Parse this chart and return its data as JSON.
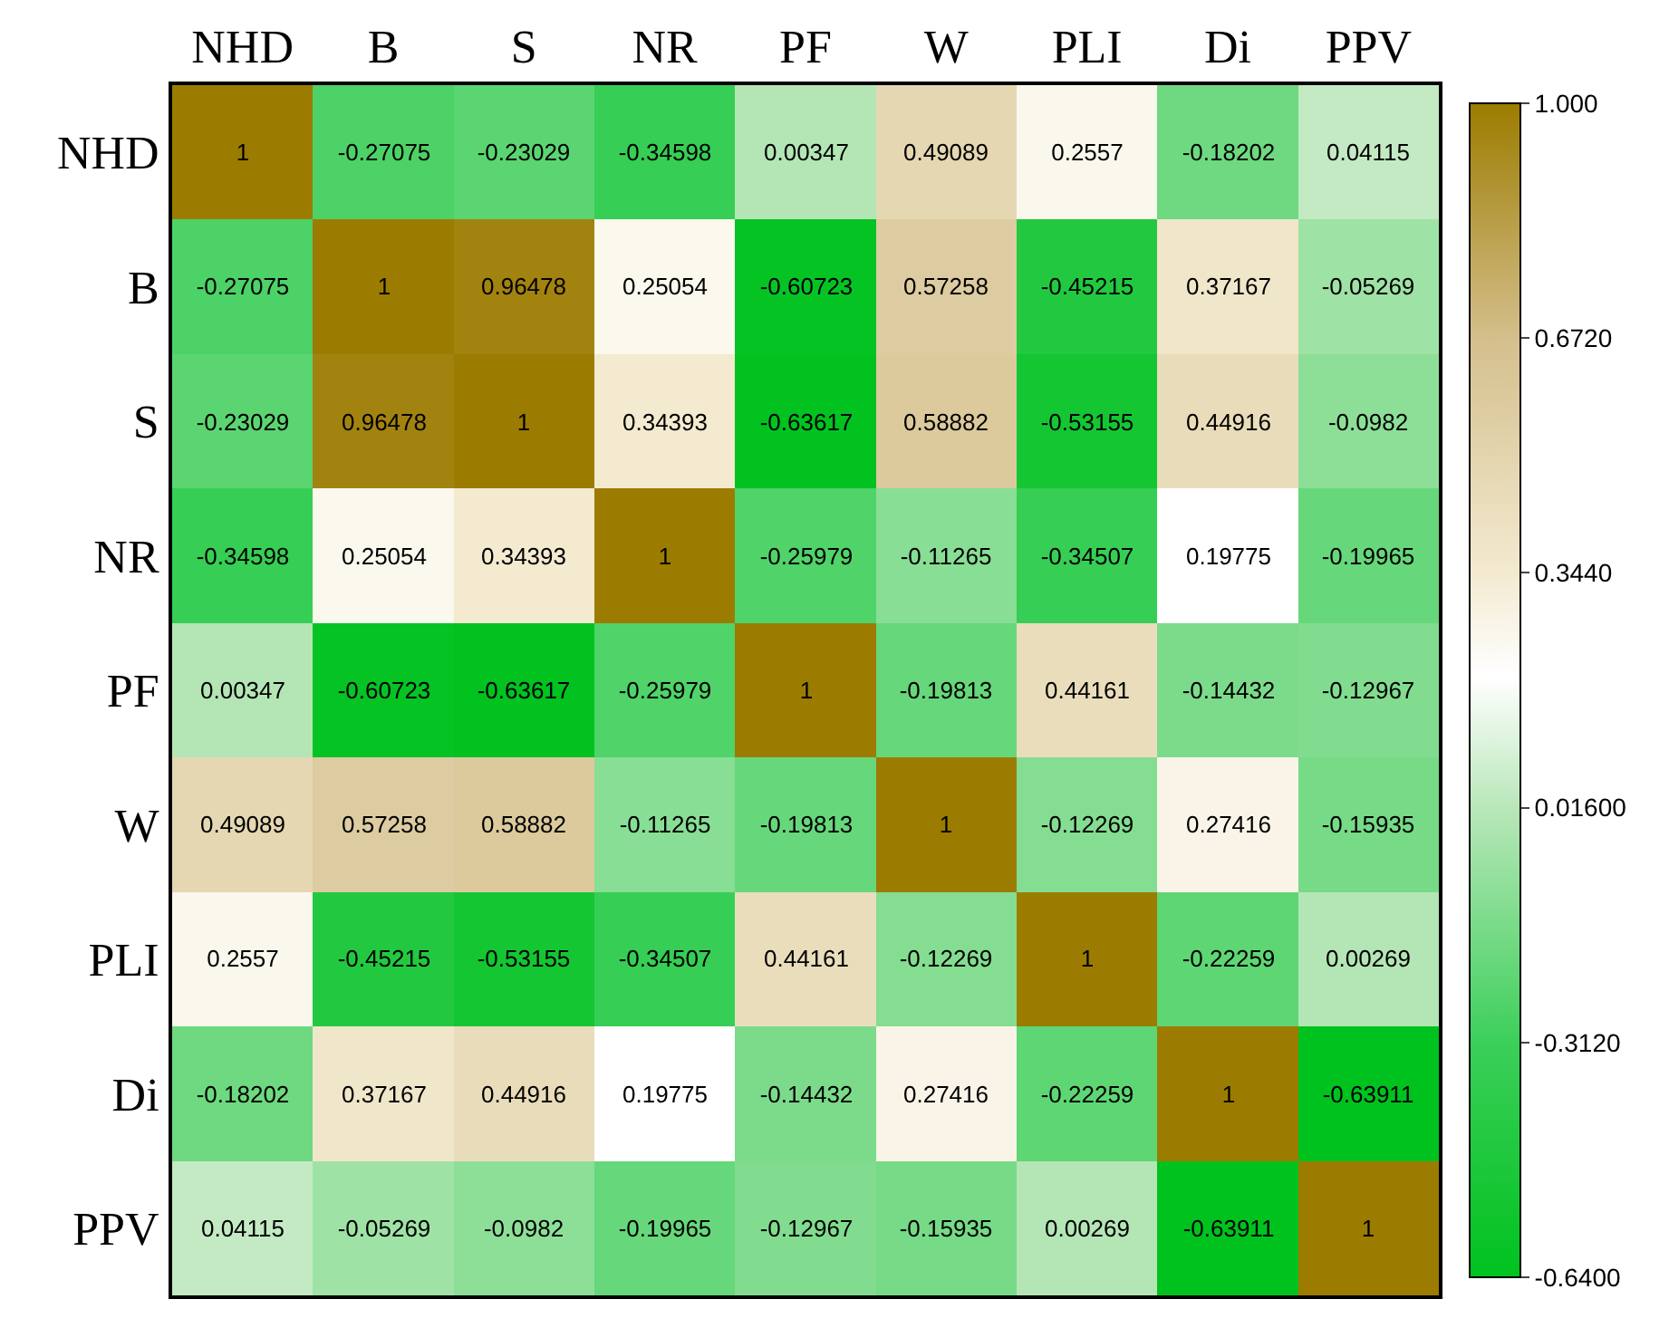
{
  "chart_data": {
    "type": "heatmap",
    "categories": [
      "NHD",
      "B",
      "S",
      "NR",
      "PF",
      "W",
      "PLI",
      "Di",
      "PPV"
    ],
    "y_categories": [
      "NHD",
      "B",
      "S",
      "NR",
      "PF",
      "W",
      "PLI",
      "Di",
      "PPV"
    ],
    "cells": [
      [
        1,
        -0.27075,
        -0.23029,
        -0.34598,
        0.00347,
        0.49089,
        0.2557,
        -0.18202,
        0.04115
      ],
      [
        -0.27075,
        1,
        0.96478,
        0.25054,
        -0.60723,
        0.57258,
        -0.45215,
        0.37167,
        -0.05269
      ],
      [
        -0.23029,
        0.96478,
        1,
        0.34393,
        -0.63617,
        0.58882,
        -0.53155,
        0.44916,
        -0.0982
      ],
      [
        -0.34598,
        0.25054,
        0.34393,
        1,
        -0.25979,
        -0.11265,
        -0.34507,
        0.19775,
        -0.19965
      ],
      [
        0.00347,
        -0.60723,
        -0.63617,
        -0.25979,
        1,
        -0.19813,
        0.44161,
        -0.14432,
        -0.12967
      ],
      [
        0.49089,
        0.57258,
        0.58882,
        -0.11265,
        -0.19813,
        1,
        -0.12269,
        0.27416,
        -0.15935
      ],
      [
        0.2557,
        -0.45215,
        -0.53155,
        -0.34507,
        0.44161,
        -0.12269,
        1,
        -0.22259,
        0.00269
      ],
      [
        -0.18202,
        0.37167,
        0.44916,
        0.19775,
        -0.14432,
        0.27416,
        -0.22259,
        1,
        -0.63911
      ],
      [
        0.04115,
        -0.05269,
        -0.0982,
        -0.19965,
        -0.12967,
        -0.15935,
        0.00269,
        -0.63911,
        1
      ]
    ],
    "clim": [
      -0.64,
      1
    ],
    "cticks": [
      {
        "value": 1,
        "label": "1.000"
      },
      {
        "value": 0.672,
        "label": "0.6720"
      },
      {
        "value": 0.344,
        "label": "0.3440"
      },
      {
        "value": 0.016,
        "label": "0.01600"
      },
      {
        "value": -0.312,
        "label": "-0.3120"
      },
      {
        "value": -0.64,
        "label": "-0.6400"
      }
    ],
    "data_labels": true
  }
}
